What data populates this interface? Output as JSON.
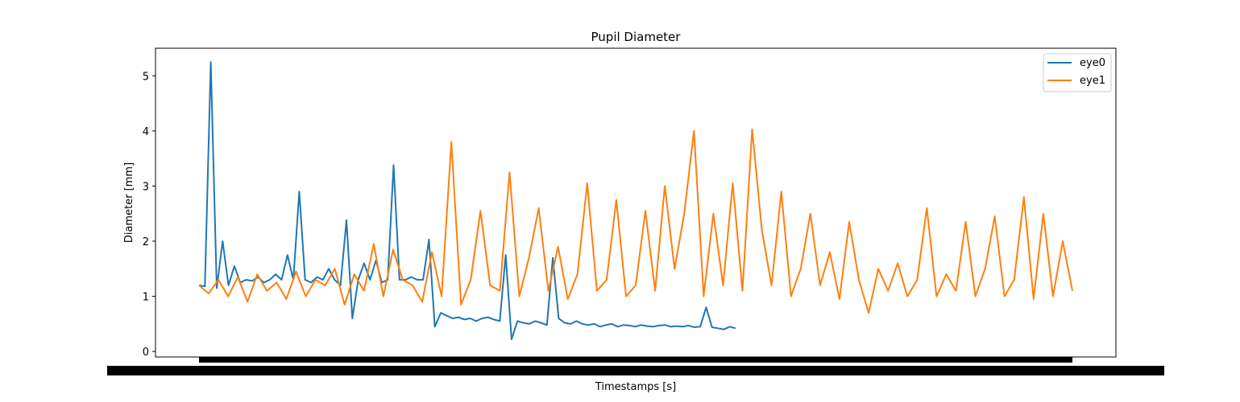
{
  "chart_data": {
    "type": "line",
    "title": "Pupil Diameter",
    "xlabel": "Timestamps [s]",
    "ylabel": "Diameter [mm]",
    "ylim": [
      -0.1,
      5.5
    ],
    "yticks": [
      0,
      1,
      2,
      3,
      4,
      5
    ],
    "xticks": "dense-overlapping",
    "grid": false,
    "legend": "top-right",
    "series": [
      {
        "name": "eye0",
        "color": "#1f77b4",
        "y": [
          1.2,
          1.18,
          5.25,
          1.15,
          2.0,
          1.2,
          1.55,
          1.25,
          1.3,
          1.28,
          1.35,
          1.25,
          1.3,
          1.4,
          1.3,
          1.75,
          1.3,
          2.9,
          1.3,
          1.25,
          1.35,
          1.3,
          1.5,
          1.3,
          1.2,
          2.38,
          0.6,
          1.3,
          1.6,
          1.3,
          1.65,
          1.25,
          1.3,
          3.38,
          1.3,
          1.3,
          1.35,
          1.3,
          1.3,
          2.03,
          0.45,
          0.7,
          0.65,
          0.6,
          0.62,
          0.58,
          0.6,
          0.55,
          0.6,
          0.62,
          0.58,
          0.55,
          1.75,
          0.22,
          0.55,
          0.52,
          0.5,
          0.55,
          0.52,
          0.48,
          1.7,
          0.6,
          0.52,
          0.5,
          0.55,
          0.5,
          0.48,
          0.5,
          0.45,
          0.48,
          0.5,
          0.45,
          0.48,
          0.47,
          0.45,
          0.48,
          0.46,
          0.45,
          0.47,
          0.48,
          0.45,
          0.46,
          0.45,
          0.47,
          0.44,
          0.45,
          0.8,
          0.44,
          0.42,
          0.4,
          0.45,
          0.42
        ]
      },
      {
        "name": "eye1",
        "color": "#ff7f0e",
        "y": [
          1.2,
          1.05,
          1.3,
          1.0,
          1.35,
          0.9,
          1.4,
          1.1,
          1.25,
          0.95,
          1.45,
          1.0,
          1.3,
          1.2,
          1.5,
          0.85,
          1.4,
          1.1,
          1.95,
          1.0,
          1.85,
          1.3,
          1.2,
          0.9,
          1.8,
          1.0,
          3.8,
          0.85,
          1.3,
          2.55,
          1.2,
          1.1,
          3.25,
          1.0,
          1.7,
          2.6,
          1.1,
          1.9,
          0.95,
          1.4,
          3.05,
          1.1,
          1.3,
          2.75,
          1.0,
          1.2,
          2.55,
          1.1,
          3.0,
          1.5,
          2.5,
          4.0,
          1.0,
          2.5,
          1.2,
          3.05,
          1.1,
          4.03,
          2.2,
          1.2,
          2.9,
          1.0,
          1.5,
          2.5,
          1.2,
          1.8,
          0.95,
          2.35,
          1.3,
          0.7,
          1.5,
          1.1,
          1.6,
          1.0,
          1.3,
          2.6,
          1.0,
          1.4,
          1.1,
          2.35,
          1.0,
          1.5,
          2.45,
          1.0,
          1.3,
          2.8,
          0.95,
          2.5,
          1.0,
          2.0,
          1.1
        ]
      }
    ]
  }
}
